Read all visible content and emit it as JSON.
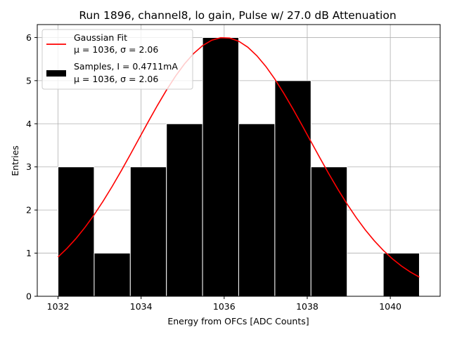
{
  "chart_data": {
    "type": "bar",
    "title": "Run 1896, channel8, lo gain, Pulse w/ 27.0 dB Attenuation",
    "xlabel": "Energy from OFCs [ADC Counts]",
    "ylabel": "Entries",
    "xlim": [
      1031.5,
      1041.2
    ],
    "ylim": [
      0,
      6.3
    ],
    "xticks": [
      "1032",
      "1034",
      "1036",
      "1038",
      "1040"
    ],
    "yticks": [
      "0",
      "1",
      "2",
      "3",
      "4",
      "5",
      "6"
    ],
    "grid": true,
    "legend_position": "top-left",
    "histogram": {
      "bin_edges": [
        1032.0,
        1032.87,
        1033.74,
        1034.61,
        1035.48,
        1036.35,
        1037.22,
        1038.09,
        1038.96,
        1039.83,
        1040.7
      ],
      "counts": [
        3,
        1,
        3,
        4,
        6,
        4,
        5,
        3,
        0,
        1
      ],
      "color": "#000000",
      "edge_color": "#ffffff"
    },
    "fit": {
      "mu": 1036,
      "sigma": 2.06,
      "amplitude": 6.0,
      "x_range": [
        1032.0,
        1040.7
      ],
      "color": "#ff0000"
    },
    "legend": [
      {
        "line1": "Gaussian Fit",
        "line2": "μ = 1036, σ = 2.06",
        "marker": "line",
        "color": "#ff0000"
      },
      {
        "line1": "Samples, I = 0.4711mA",
        "line2": "μ = 1036, σ = 2.06",
        "marker": "patch",
        "color": "#000000"
      }
    ]
  }
}
